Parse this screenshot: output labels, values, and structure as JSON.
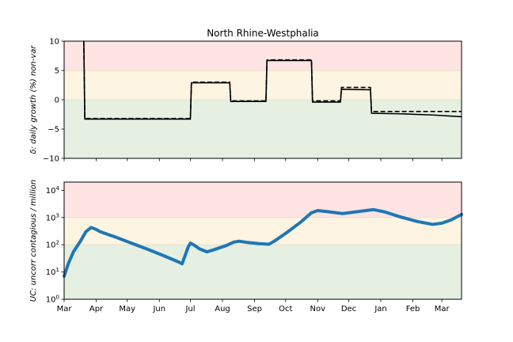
{
  "chart_data": [
    {
      "type": "line",
      "title": "North Rhine-Westphalia",
      "ylabel": "δ: daily growth (%) non-var",
      "ylim": [
        -10,
        10
      ],
      "yticks": [
        10,
        5,
        0,
        -5,
        -10
      ],
      "yticklabels": [
        "10",
        "5",
        "0",
        "−5",
        "−10"
      ],
      "xlim": [
        "2020-03-01",
        "2021-03-20"
      ],
      "background_bands": [
        {
          "from": 5,
          "to": 10,
          "color": "#ffe4e4"
        },
        {
          "from": 0,
          "to": 5,
          "color": "#fdf4e1"
        },
        {
          "from": -10,
          "to": 0,
          "color": "#e5f0e3"
        }
      ],
      "series": [
        {
          "style": "solid",
          "color": "#000000",
          "points": [
            [
              "2020-03-20",
              10
            ],
            [
              "2020-03-21",
              -3.3
            ],
            [
              "2020-07-01",
              -3.3
            ],
            [
              "2020-07-02",
              2.9
            ],
            [
              "2020-08-08",
              2.9
            ],
            [
              "2020-08-09",
              -0.3
            ],
            [
              "2020-09-12",
              -0.3
            ],
            [
              "2020-09-13",
              6.7
            ],
            [
              "2020-10-26",
              6.7
            ],
            [
              "2020-10-27",
              -0.4
            ],
            [
              "2020-11-23",
              -0.4
            ],
            [
              "2020-11-24",
              1.8
            ],
            [
              "2020-12-22",
              1.7
            ],
            [
              "2020-12-23",
              -2.3
            ],
            [
              "2021-01-20",
              -2.4
            ],
            [
              "2021-02-20",
              -2.6
            ],
            [
              "2021-03-20",
              -2.9
            ]
          ]
        },
        {
          "style": "dashed",
          "color": "#000000",
          "points": [
            [
              "2020-03-20",
              10
            ],
            [
              "2020-03-21",
              -3.2
            ],
            [
              "2020-07-01",
              -3.2
            ],
            [
              "2020-07-02",
              3.0
            ],
            [
              "2020-08-08",
              3.0
            ],
            [
              "2020-08-09",
              -0.2
            ],
            [
              "2020-09-12",
              -0.2
            ],
            [
              "2020-09-13",
              6.8
            ],
            [
              "2020-10-26",
              6.8
            ],
            [
              "2020-10-27",
              -0.2
            ],
            [
              "2020-11-23",
              -0.2
            ],
            [
              "2020-11-24",
              2.1
            ],
            [
              "2020-12-22",
              2.1
            ],
            [
              "2020-12-23",
              -2.0
            ],
            [
              "2021-03-20",
              -2.0
            ]
          ]
        }
      ]
    },
    {
      "type": "line",
      "ylabel": "UC: uncorr contagious / million",
      "yscale": "log",
      "ylim": [
        1,
        20000
      ],
      "yticks": [
        1,
        10,
        100,
        1000,
        10000
      ],
      "yticklabels": [
        {
          "base": "10",
          "exp": "0"
        },
        {
          "base": "10",
          "exp": "1"
        },
        {
          "base": "10",
          "exp": "2"
        },
        {
          "base": "10",
          "exp": "3"
        },
        {
          "base": "10",
          "exp": "4"
        }
      ],
      "xlim": [
        "2020-03-01",
        "2021-03-20"
      ],
      "xticks": [
        "2020-03-01",
        "2020-04-01",
        "2020-05-01",
        "2020-06-01",
        "2020-07-01",
        "2020-08-01",
        "2020-09-01",
        "2020-10-01",
        "2020-11-01",
        "2020-12-01",
        "2021-01-01",
        "2021-02-01",
        "2021-03-01"
      ],
      "xticklabels": [
        "Mar",
        "Apr",
        "May",
        "Jun",
        "Jul",
        "Aug",
        "Sep",
        "Oct",
        "Nov",
        "Dec",
        "Jan",
        "Feb",
        "Mar"
      ],
      "background_bands": [
        {
          "from": 1000,
          "to": 20000,
          "color": "#ffe4e4"
        },
        {
          "from": 100,
          "to": 1000,
          "color": "#fdf4e1"
        },
        {
          "from": 1,
          "to": 100,
          "color": "#e5f0e3"
        }
      ],
      "series": [
        {
          "style": "solid",
          "color": "#1f77b4",
          "points": [
            [
              "2020-03-01",
              7
            ],
            [
              "2020-03-05",
              20
            ],
            [
              "2020-03-10",
              55
            ],
            [
              "2020-03-17",
              140
            ],
            [
              "2020-03-22",
              300
            ],
            [
              "2020-03-27",
              430
            ],
            [
              "2020-03-31",
              380
            ],
            [
              "2020-04-05",
              300
            ],
            [
              "2020-04-20",
              190
            ],
            [
              "2020-05-05",
              115
            ],
            [
              "2020-05-20",
              70
            ],
            [
              "2020-06-05",
              40
            ],
            [
              "2020-06-20",
              23
            ],
            [
              "2020-06-23",
              20
            ],
            [
              "2020-06-29",
              85
            ],
            [
              "2020-07-01",
              115
            ],
            [
              "2020-07-05",
              95
            ],
            [
              "2020-07-10",
              70
            ],
            [
              "2020-07-17",
              55
            ],
            [
              "2020-07-25",
              68
            ],
            [
              "2020-08-05",
              95
            ],
            [
              "2020-08-12",
              125
            ],
            [
              "2020-08-17",
              135
            ],
            [
              "2020-08-25",
              122
            ],
            [
              "2020-09-05",
              110
            ],
            [
              "2020-09-15",
              105
            ],
            [
              "2020-09-20",
              135
            ],
            [
              "2020-10-01",
              260
            ],
            [
              "2020-10-15",
              650
            ],
            [
              "2020-10-26",
              1500
            ],
            [
              "2020-11-01",
              1800
            ],
            [
              "2020-11-10",
              1650
            ],
            [
              "2020-11-25",
              1400
            ],
            [
              "2020-12-10",
              1650
            ],
            [
              "2020-12-25",
              1950
            ],
            [
              "2021-01-05",
              1600
            ],
            [
              "2021-01-20",
              1050
            ],
            [
              "2021-02-05",
              720
            ],
            [
              "2021-02-20",
              560
            ],
            [
              "2021-03-01",
              620
            ],
            [
              "2021-03-10",
              820
            ],
            [
              "2021-03-20",
              1300
            ]
          ]
        }
      ]
    }
  ]
}
